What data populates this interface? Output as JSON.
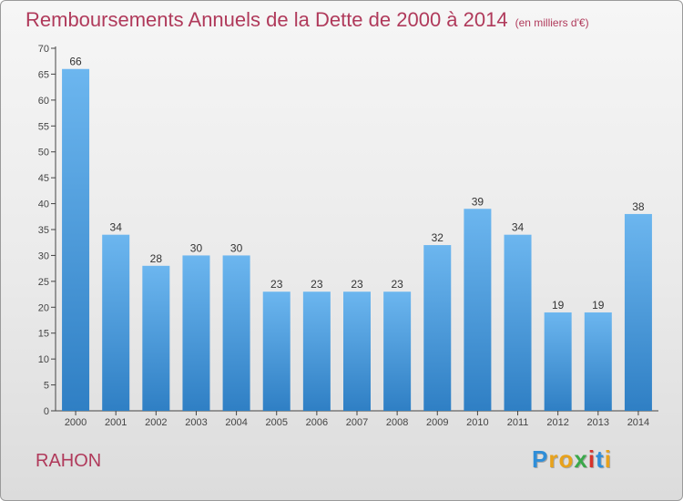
{
  "header": {
    "title": "Remboursements Annuels de la Dette de 2000 à 2014",
    "subtitle": "(en milliers d'€)"
  },
  "footer": {
    "place": "RAHON",
    "logo_letters": [
      "P",
      "r",
      "o",
      "x",
      "i",
      "t",
      "i"
    ],
    "logo_colors": [
      "#2f8ed8",
      "#e8a21b",
      "#e8a21b",
      "#3aa84a",
      "#d6332b",
      "#2f8ed8",
      "#e8a21b"
    ]
  },
  "chart_data": {
    "type": "bar",
    "title": "Remboursements Annuels de la Dette de 2000 à 2014",
    "subtitle": "(en milliers d'€)",
    "categories": [
      "2000",
      "2001",
      "2002",
      "2003",
      "2004",
      "2005",
      "2006",
      "2007",
      "2008",
      "2009",
      "2010",
      "2011",
      "2012",
      "2013",
      "2014"
    ],
    "values": [
      66,
      34,
      28,
      30,
      30,
      23,
      23,
      23,
      23,
      32,
      39,
      34,
      19,
      19,
      38
    ],
    "ylim": [
      0,
      70
    ],
    "yticks": [
      0,
      5,
      10,
      15,
      20,
      25,
      30,
      35,
      40,
      45,
      50,
      55,
      60,
      65,
      70
    ],
    "grid": false,
    "bar_color_top": "#6cb6ef",
    "bar_color_bottom": "#2f7fc4"
  }
}
